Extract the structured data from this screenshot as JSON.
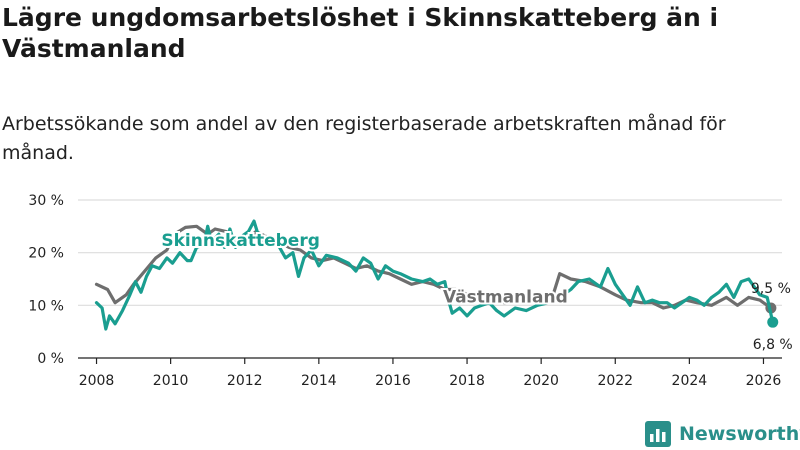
{
  "title": "Lägre ungdomsarbetslöshet i Skinnskatteberg än i Västmanland",
  "subtitle": "Arbetssökande som andel av den registerbaserade arbetskraften månad för månad.",
  "logo": {
    "name": "Newsworthy",
    "icon": "bar-chart-logo-icon"
  },
  "colors": {
    "skinnskatteberg": "#1a9e90",
    "vastmanland": "#6e6e6e",
    "grid": "#dddddd",
    "axis": "#222222",
    "brand": "#2a8f8a"
  },
  "chart_data": {
    "type": "line",
    "title": "Lägre ungdomsarbetslöshet i Skinnskatteberg än i Västmanland",
    "xlabel": "",
    "ylabel": "",
    "ylim": [
      0,
      30
    ],
    "xlim": [
      2007.5,
      2026.5
    ],
    "y_ticks": [
      0,
      10,
      20,
      30
    ],
    "y_tick_labels": [
      "0 %",
      "10 %",
      "20 %",
      "30 %"
    ],
    "x_ticks": [
      2008,
      2010,
      2012,
      2014,
      2016,
      2018,
      2020,
      2022,
      2024,
      2026
    ],
    "x_tick_labels": [
      "2008",
      "2010",
      "2012",
      "2014",
      "2016",
      "2018",
      "2020",
      "2022",
      "2024",
      "2026"
    ],
    "grid": true,
    "series": [
      {
        "name": "Västmanland",
        "color": "#6e6e6e",
        "label_text": "Västmanland",
        "end_label": "9,5 %",
        "points": [
          [
            2008.0,
            14.0
          ],
          [
            2008.3,
            13.0
          ],
          [
            2008.5,
            10.5
          ],
          [
            2008.8,
            12.0
          ],
          [
            2009.0,
            14.0
          ],
          [
            2009.3,
            16.5
          ],
          [
            2009.6,
            19.0
          ],
          [
            2009.9,
            20.5
          ],
          [
            2010.1,
            23.5
          ],
          [
            2010.4,
            24.8
          ],
          [
            2010.7,
            25.0
          ],
          [
            2011.0,
            23.5
          ],
          [
            2011.2,
            24.5
          ],
          [
            2011.5,
            24.0
          ],
          [
            2011.7,
            23.0
          ],
          [
            2012.0,
            22.0
          ],
          [
            2012.3,
            24.0
          ],
          [
            2012.6,
            23.0
          ],
          [
            2012.9,
            22.0
          ],
          [
            2013.2,
            21.0
          ],
          [
            2013.5,
            20.5
          ],
          [
            2013.8,
            19.0
          ],
          [
            2014.1,
            18.5
          ],
          [
            2014.4,
            19.0
          ],
          [
            2014.7,
            18.0
          ],
          [
            2015.0,
            17.0
          ],
          [
            2015.3,
            17.5
          ],
          [
            2015.6,
            16.5
          ],
          [
            2015.9,
            16.0
          ],
          [
            2016.2,
            15.0
          ],
          [
            2016.5,
            14.0
          ],
          [
            2016.8,
            14.5
          ],
          [
            2017.1,
            14.0
          ],
          [
            2017.4,
            13.0
          ],
          [
            2017.7,
            13.0
          ],
          [
            2017.9,
            12.5
          ],
          [
            2018.1,
            11.5
          ],
          [
            2018.3,
            11.0
          ],
          [
            2018.6,
            10.8
          ],
          [
            2019.0,
            10.5
          ],
          [
            2019.5,
            10.5
          ],
          [
            2020.0,
            11.0
          ],
          [
            2020.3,
            11.5
          ],
          [
            2020.5,
            16.0
          ],
          [
            2020.8,
            15.0
          ],
          [
            2021.2,
            14.5
          ],
          [
            2021.6,
            13.5
          ],
          [
            2022.0,
            12.0
          ],
          [
            2022.3,
            11.0
          ],
          [
            2022.7,
            10.5
          ],
          [
            2023.0,
            10.5
          ],
          [
            2023.3,
            9.5
          ],
          [
            2023.6,
            10.0
          ],
          [
            2023.9,
            11.0
          ],
          [
            2024.2,
            10.5
          ],
          [
            2024.6,
            10.0
          ],
          [
            2025.0,
            11.5
          ],
          [
            2025.3,
            10.0
          ],
          [
            2025.6,
            11.5
          ],
          [
            2025.9,
            11.0
          ],
          [
            2026.2,
            9.5
          ]
        ]
      },
      {
        "name": "Skinnskatteberg",
        "color": "#1a9e90",
        "label_text": "Skinnskatteberg",
        "end_label": "6,8 %",
        "points": [
          [
            2008.0,
            10.5
          ],
          [
            2008.15,
            9.5
          ],
          [
            2008.25,
            5.5
          ],
          [
            2008.35,
            8.0
          ],
          [
            2008.5,
            6.5
          ],
          [
            2008.7,
            9.0
          ],
          [
            2008.9,
            12.0
          ],
          [
            2009.05,
            14.5
          ],
          [
            2009.2,
            12.5
          ],
          [
            2009.35,
            15.5
          ],
          [
            2009.5,
            17.5
          ],
          [
            2009.7,
            17.0
          ],
          [
            2009.9,
            19.0
          ],
          [
            2010.05,
            18.0
          ],
          [
            2010.25,
            20.0
          ],
          [
            2010.45,
            18.5
          ],
          [
            2010.55,
            18.5
          ],
          [
            2010.7,
            21.0
          ],
          [
            2010.9,
            21.5
          ],
          [
            2011.0,
            25.0
          ],
          [
            2011.1,
            22.0
          ],
          [
            2011.3,
            23.5
          ],
          [
            2011.45,
            21.0
          ],
          [
            2011.6,
            24.5
          ],
          [
            2011.75,
            21.0
          ],
          [
            2011.9,
            23.0
          ],
          [
            2012.1,
            24.0
          ],
          [
            2012.25,
            26.0
          ],
          [
            2012.4,
            22.5
          ],
          [
            2012.6,
            22.0
          ],
          [
            2012.9,
            21.5
          ],
          [
            2013.1,
            19.0
          ],
          [
            2013.3,
            20.0
          ],
          [
            2013.45,
            15.5
          ],
          [
            2013.6,
            19.0
          ],
          [
            2013.8,
            20.5
          ],
          [
            2014.0,
            17.5
          ],
          [
            2014.2,
            19.5
          ],
          [
            2014.5,
            19.0
          ],
          [
            2014.8,
            18.0
          ],
          [
            2015.0,
            16.5
          ],
          [
            2015.2,
            19.0
          ],
          [
            2015.4,
            18.0
          ],
          [
            2015.6,
            15.0
          ],
          [
            2015.8,
            17.5
          ],
          [
            2016.0,
            16.5
          ],
          [
            2016.2,
            16.0
          ],
          [
            2016.5,
            15.0
          ],
          [
            2016.8,
            14.5
          ],
          [
            2017.0,
            15.0
          ],
          [
            2017.2,
            14.0
          ],
          [
            2017.4,
            14.5
          ],
          [
            2017.5,
            11.0
          ],
          [
            2017.6,
            8.5
          ],
          [
            2017.8,
            9.5
          ],
          [
            2018.0,
            8.0
          ],
          [
            2018.2,
            9.5
          ],
          [
            2018.4,
            10.0
          ],
          [
            2018.6,
            10.5
          ],
          [
            2018.8,
            9.0
          ],
          [
            2019.0,
            8.0
          ],
          [
            2019.3,
            9.5
          ],
          [
            2019.6,
            9.0
          ],
          [
            2019.9,
            10.0
          ],
          [
            2020.2,
            10.5
          ],
          [
            2020.5,
            11.5
          ],
          [
            2020.8,
            13.0
          ],
          [
            2021.0,
            14.5
          ],
          [
            2021.3,
            15.0
          ],
          [
            2021.6,
            13.5
          ],
          [
            2021.8,
            17.0
          ],
          [
            2022.0,
            14.0
          ],
          [
            2022.2,
            12.0
          ],
          [
            2022.4,
            10.0
          ],
          [
            2022.6,
            13.5
          ],
          [
            2022.8,
            10.5
          ],
          [
            2023.0,
            11.0
          ],
          [
            2023.2,
            10.5
          ],
          [
            2023.4,
            10.5
          ],
          [
            2023.6,
            9.5
          ],
          [
            2023.8,
            10.5
          ],
          [
            2024.0,
            11.5
          ],
          [
            2024.2,
            11.0
          ],
          [
            2024.4,
            10.0
          ],
          [
            2024.6,
            11.5
          ],
          [
            2024.8,
            12.5
          ],
          [
            2025.0,
            14.0
          ],
          [
            2025.2,
            11.5
          ],
          [
            2025.4,
            14.5
          ],
          [
            2025.6,
            15.0
          ],
          [
            2025.9,
            12.0
          ],
          [
            2026.1,
            11.5
          ],
          [
            2026.25,
            6.8
          ]
        ]
      }
    ]
  }
}
